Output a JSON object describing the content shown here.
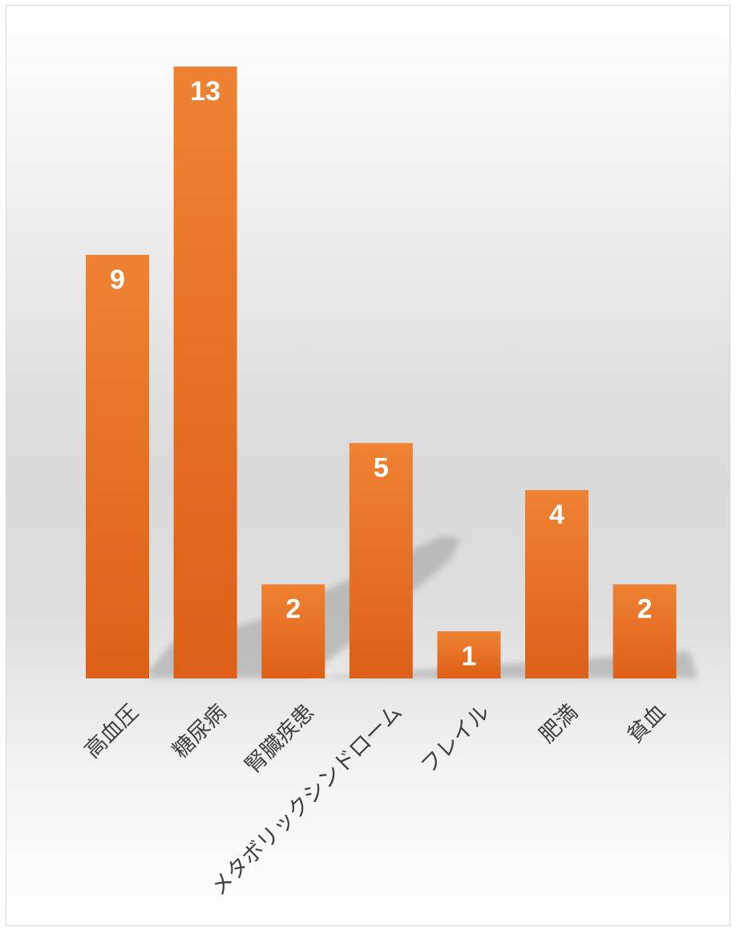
{
  "chart_data": {
    "type": "bar",
    "categories": [
      "高血圧",
      "糖尿病",
      "腎臓疾患",
      "メタボリックシンドローム",
      "フレイル",
      "肥満",
      "貧血"
    ],
    "values": [
      9,
      13,
      2,
      5,
      1,
      4,
      2
    ],
    "ylim": [
      0,
      13
    ],
    "grid": false,
    "legend": "none",
    "colors": {
      "bar_top": "#ee8233",
      "bar_bottom": "#de5f17",
      "data_label": "#ffffff",
      "category_label": "#404040",
      "shadow": "#9e9e9e"
    }
  }
}
